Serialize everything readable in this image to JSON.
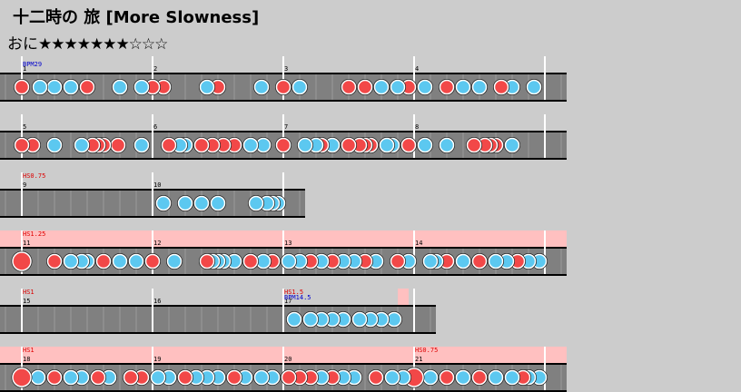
{
  "header": {
    "title": "十二時の 旅 [More Slowness]",
    "difficulty": "おに",
    "stars": "★★★★★★★☆☆☆"
  },
  "rows": [
    {
      "measures": [
        1,
        2,
        3,
        4
      ],
      "labels": [
        "BPM29"
      ]
    },
    {
      "measures": [
        5,
        6,
        7,
        8
      ],
      "labels": []
    },
    {
      "measures": [
        9,
        10
      ],
      "labels": [
        "HS0.75"
      ]
    },
    {
      "measures": [
        11,
        12,
        13,
        14
      ],
      "labels": [
        "HS1.25"
      ]
    },
    {
      "measures": [
        15,
        16,
        17
      ],
      "labels": [
        "HS1",
        "HS1.5",
        "BPM14.5"
      ]
    },
    {
      "measures": [
        18,
        19,
        20,
        21
      ],
      "labels": [
        "HS1",
        "HS0.75"
      ]
    }
  ]
}
